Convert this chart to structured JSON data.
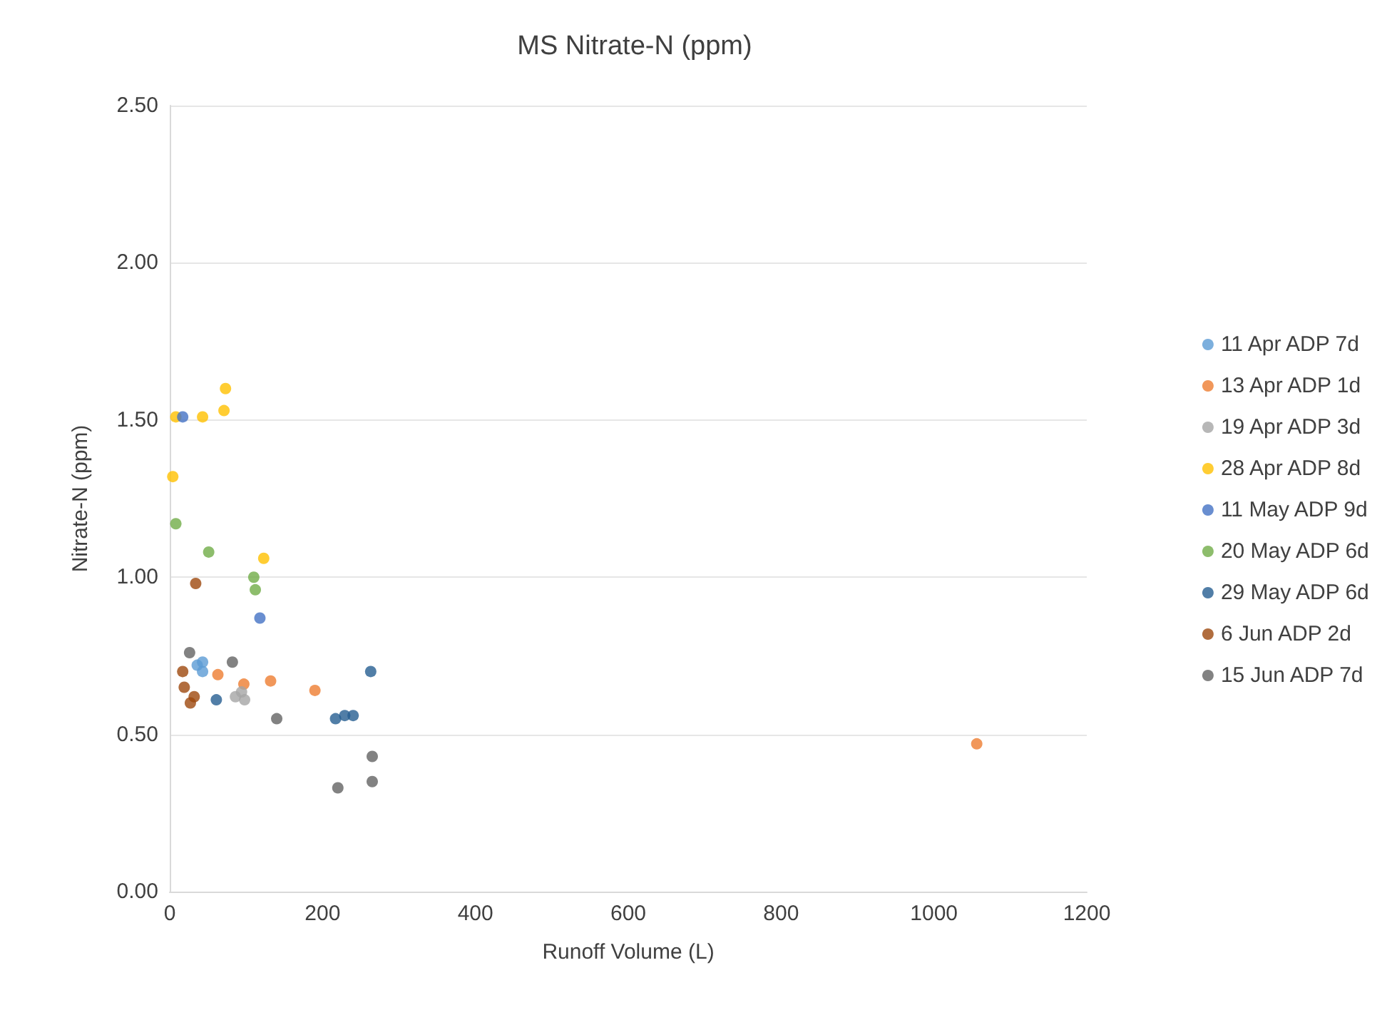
{
  "chart_data": {
    "type": "scatter",
    "title": "MS Nitrate-N (ppm)",
    "xlabel": "Runoff Volume (L)",
    "ylabel": "Nitrate-N (ppm)",
    "xlim": [
      0,
      1200
    ],
    "xticks": [
      0,
      200,
      400,
      600,
      800,
      1000,
      1200
    ],
    "ylim": [
      0,
      2.5
    ],
    "yticks": [
      {
        "value": 0,
        "label": "0.00"
      },
      {
        "value": 0.5,
        "label": "0.50"
      },
      {
        "value": 1,
        "label": "1.00"
      },
      {
        "value": 1.5,
        "label": "1.50"
      },
      {
        "value": 2,
        "label": "2.00"
      },
      {
        "value": 2.5,
        "label": "2.50"
      }
    ],
    "grid": "y",
    "legend": "right",
    "marker": "circle",
    "series": [
      {
        "name": "11 Apr ADP 7d",
        "color": "#5b9bd5",
        "x": [
          36,
          43,
          43
        ],
        "values": [
          0.72,
          0.73,
          0.7
        ]
      },
      {
        "name": "13 Apr ADP 1d",
        "color": "#ed7d31",
        "x": [
          63,
          97,
          132,
          190,
          1056
        ],
        "values": [
          0.69,
          0.66,
          0.67,
          0.64,
          0.47
        ]
      },
      {
        "name": "19 Apr ADP 3d",
        "color": "#a5a5a5",
        "x": [
          86,
          98,
          94
        ],
        "values": [
          0.62,
          0.61,
          0.635
        ]
      },
      {
        "name": "28 Apr ADP 8d",
        "color": "#ffc000",
        "x": [
          73,
          8,
          43,
          71,
          4,
          123
        ],
        "values": [
          1.6,
          1.51,
          1.51,
          1.53,
          1.32,
          1.06
        ]
      },
      {
        "name": "11 May ADP 9d",
        "color": "#4472c4",
        "x": [
          17,
          118
        ],
        "values": [
          1.51,
          0.87
        ]
      },
      {
        "name": "20 May ADP 6d",
        "color": "#70ad47",
        "x": [
          8,
          51,
          110,
          112
        ],
        "values": [
          1.17,
          1.08,
          1.0,
          0.96
        ]
      },
      {
        "name": "29 May ADP 6d",
        "color": "#255e91",
        "x": [
          61,
          217,
          229,
          240,
          263
        ],
        "values": [
          0.61,
          0.55,
          0.56,
          0.56,
          0.7
        ]
      },
      {
        "name": "6 Jun ADP 2d",
        "color": "#9e480e",
        "x": [
          34,
          17,
          19,
          32,
          27
        ],
        "values": [
          0.98,
          0.7,
          0.65,
          0.62,
          0.6
        ]
      },
      {
        "name": "15 Jun ADP 7d",
        "color": "#636363",
        "x": [
          26,
          82,
          140,
          265,
          265,
          220
        ],
        "values": [
          0.76,
          0.73,
          0.55,
          0.43,
          0.35,
          0.33
        ]
      }
    ]
  }
}
